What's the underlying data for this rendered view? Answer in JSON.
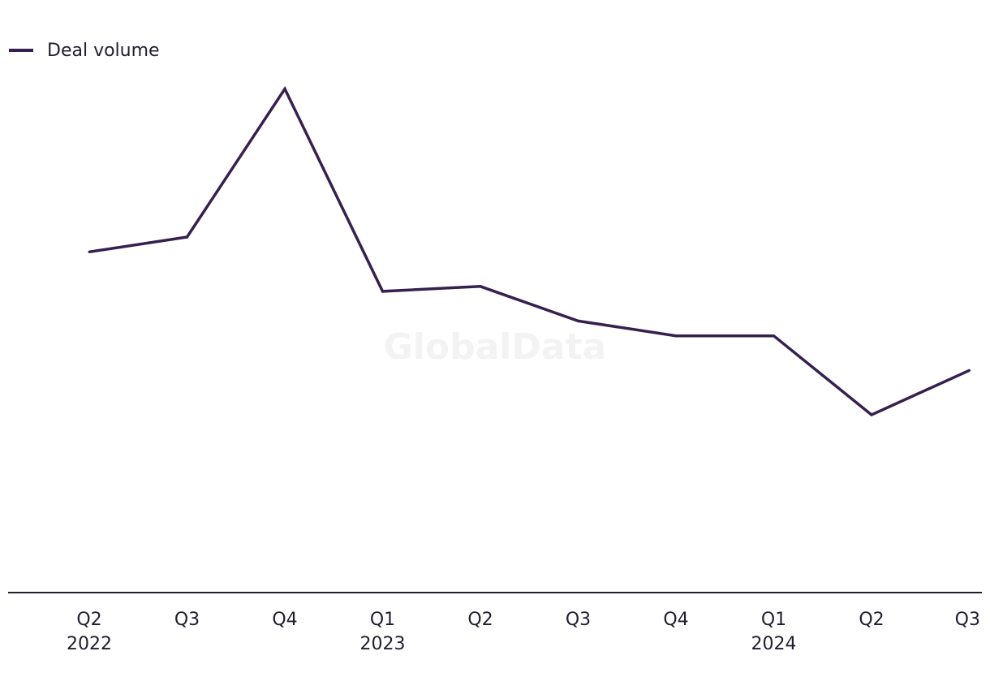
{
  "watermark": "GlobalData",
  "chart_data": {
    "type": "line",
    "categories": [
      "Q2",
      "Q3",
      "Q4",
      "Q1",
      "Q2",
      "Q3",
      "Q4",
      "Q1",
      "Q2",
      "Q3"
    ],
    "category_years": [
      "2022",
      "",
      "",
      "2023",
      "",
      "",
      "",
      "2024",
      "",
      ""
    ],
    "series": [
      {
        "name": "Deal volume",
        "color": "#35204f",
        "values": [
          69,
          72,
          102,
          61,
          62,
          55,
          52,
          52,
          36,
          45
        ]
      }
    ],
    "legend_position": "top-left",
    "grid": false,
    "ylim": [
      0,
      120
    ]
  }
}
